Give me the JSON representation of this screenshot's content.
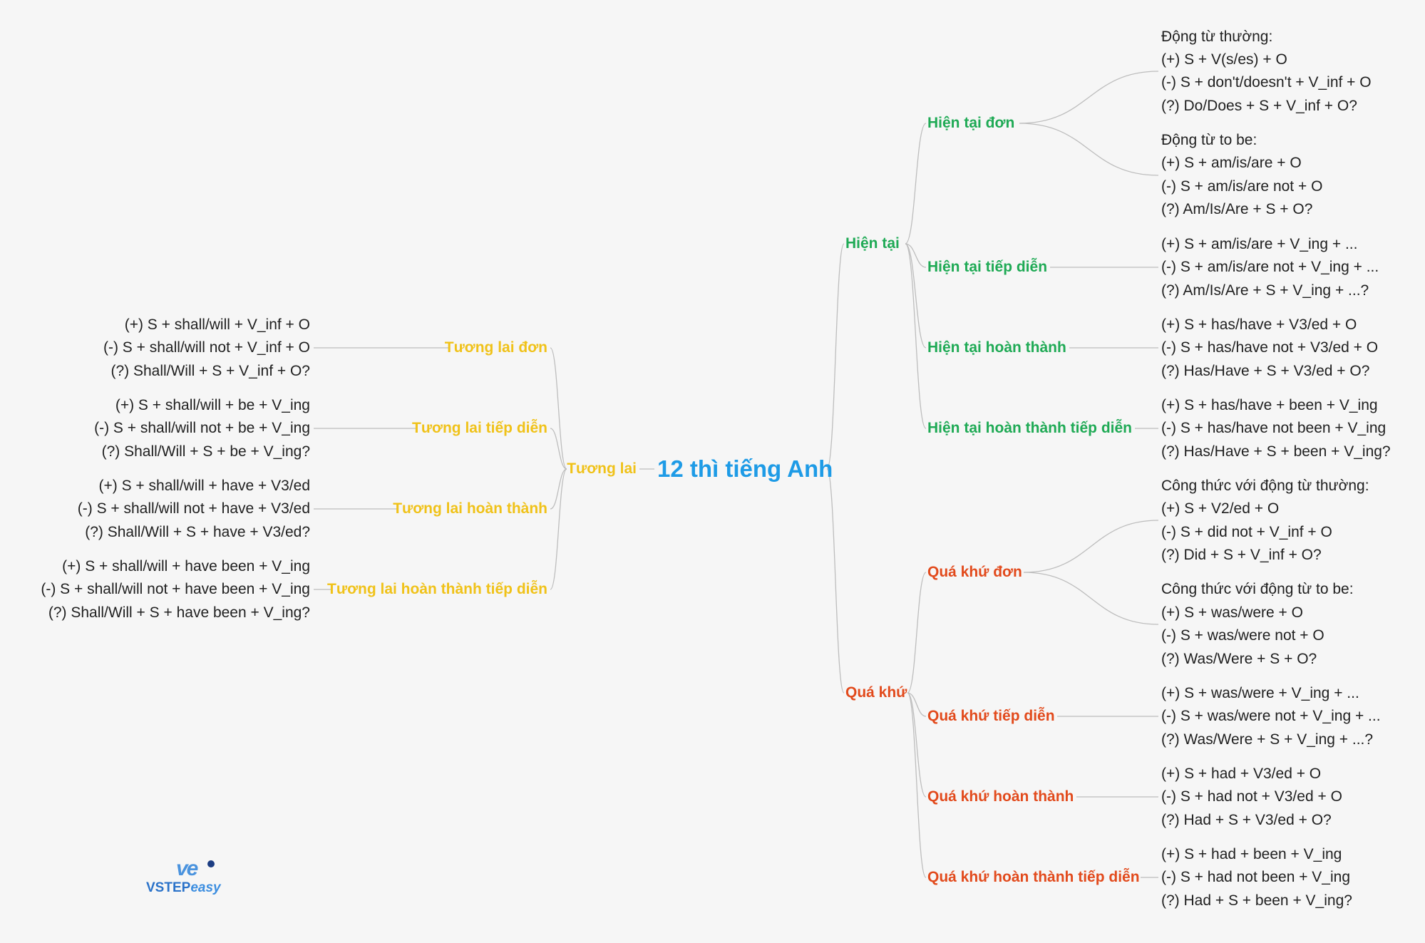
{
  "title": "12 thì tiếng Anh",
  "colors": {
    "root": "#1e9be6",
    "present": "#1faa55",
    "past": "#e24a1c",
    "future": "#f0c219",
    "line": "#bdbdbd"
  },
  "present": {
    "label": "Hiện tại",
    "tenses": [
      {
        "label": "Hiện tại đơn",
        "groups": [
          {
            "heading": "Động từ thường:",
            "lines": [
              "(+) S + V(s/es) + O",
              "(-) S + don't/doesn't + V_inf + O",
              "(?) Do/Does + S + V_inf + O?"
            ]
          },
          {
            "heading": "Động từ to be:",
            "lines": [
              "(+) S + am/is/are + O",
              "(-) S + am/is/are not + O",
              "(?) Am/Is/Are + S + O?"
            ]
          }
        ]
      },
      {
        "label": "Hiện tại tiếp diễn",
        "groups": [
          {
            "lines": [
              "(+) S + am/is/are + V_ing + ...",
              "(-) S + am/is/are not + V_ing + ...",
              "(?) Am/Is/Are + S + V_ing + ...?"
            ]
          }
        ]
      },
      {
        "label": "Hiện tại hoàn thành",
        "groups": [
          {
            "lines": [
              "(+) S + has/have + V3/ed + O",
              "(-) S + has/have not + V3/ed + O",
              "(?) Has/Have + S + V3/ed + O?"
            ]
          }
        ]
      },
      {
        "label": "Hiện tại hoàn thành tiếp diễn",
        "groups": [
          {
            "lines": [
              "(+) S + has/have + been + V_ing",
              "(-) S + has/have not been + V_ing",
              "(?) Has/Have + S + been + V_ing?"
            ]
          }
        ]
      }
    ]
  },
  "past": {
    "label": "Quá khứ",
    "tenses": [
      {
        "label": "Quá khứ đơn",
        "groups": [
          {
            "heading": "Công thức với động từ thường:",
            "lines": [
              "(+) S + V2/ed + O",
              "(-) S + did not + V_inf + O",
              "(?) Did + S + V_inf + O?"
            ]
          },
          {
            "heading": "Công thức với động từ to be:",
            "lines": [
              "(+) S + was/were + O",
              "(-) S + was/were not + O",
              "(?) Was/Were + S + O?"
            ]
          }
        ]
      },
      {
        "label": "Quá khứ tiếp diễn",
        "groups": [
          {
            "lines": [
              "(+) S + was/were + V_ing + ...",
              "(-) S + was/were not + V_ing + ...",
              "(?) Was/Were + S + V_ing + ...?"
            ]
          }
        ]
      },
      {
        "label": "Quá khứ hoàn thành",
        "groups": [
          {
            "lines": [
              "(+) S + had + V3/ed + O",
              "(-) S + had not + V3/ed + O",
              "(?) Had + S + V3/ed + O?"
            ]
          }
        ]
      },
      {
        "label": "Quá khứ hoàn thành tiếp diễn",
        "groups": [
          {
            "lines": [
              "(+) S + had + been + V_ing",
              "(-) S + had not been + V_ing",
              "(?) Had + S + been + V_ing?"
            ]
          }
        ]
      }
    ]
  },
  "future": {
    "label": "Tương lai",
    "tenses": [
      {
        "label": "Tương lai đơn",
        "lines": [
          "(+) S + shall/will + V_inf + O",
          "(-) S + shall/will not + V_inf + O",
          "(?) Shall/Will + S + V_inf + O?"
        ]
      },
      {
        "label": "Tương lai tiếp diễn",
        "lines": [
          "(+) S + shall/will + be + V_ing",
          "(-) S + shall/will not + be + V_ing",
          "(?) Shall/Will + S + be + V_ing?"
        ]
      },
      {
        "label": "Tương lai hoàn thành",
        "lines": [
          "(+) S + shall/will + have + V3/ed",
          "(-) S + shall/will not + have + V3/ed",
          "(?) Shall/Will + S + have + V3/ed?"
        ]
      },
      {
        "label": "Tương lai hoàn thành tiếp diễn",
        "lines": [
          "(+) S + shall/will + have been + V_ing",
          "(-) S + shall/will not + have been + V_ing",
          "(?) Shall/Will + S + have been + V_ing?"
        ]
      }
    ]
  },
  "brand": {
    "mark": "ve",
    "name": "VSTEP",
    "name_suffix": "easy"
  }
}
